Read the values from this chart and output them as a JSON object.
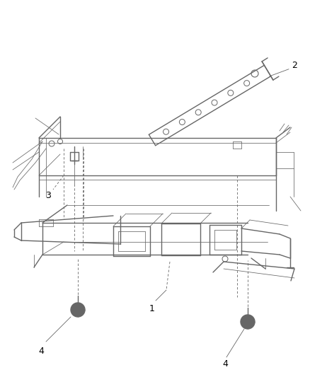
{
  "background_color": "#ffffff",
  "line_color": "#666666",
  "label_color": "#000000",
  "fig_width": 4.38,
  "fig_height": 5.33,
  "dpi": 100,
  "label_fontsize": 9
}
